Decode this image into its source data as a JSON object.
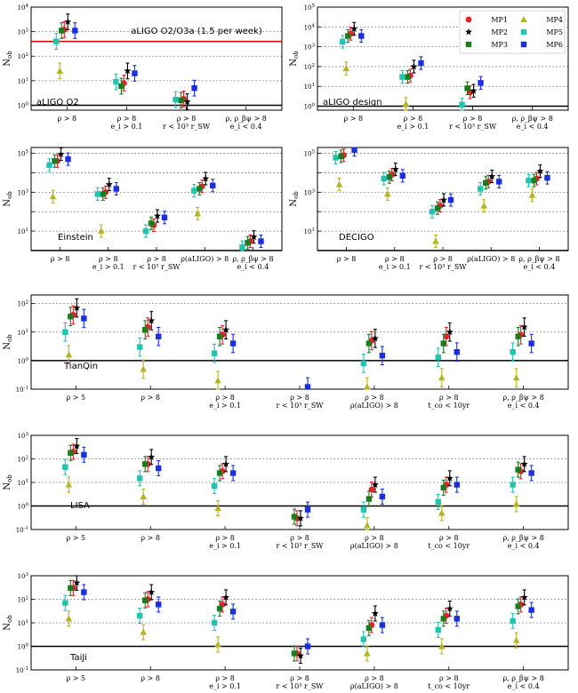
{
  "legend": [
    {
      "name": "MP1",
      "color": "#e8202a",
      "marker": "circle"
    },
    {
      "name": "MP2",
      "color": "#000000",
      "marker": "star"
    },
    {
      "name": "MP3",
      "color": "#1e7a1e",
      "marker": "square"
    },
    {
      "name": "MP4",
      "color": "#b5b51f",
      "marker": "triangle"
    },
    {
      "name": "MP5",
      "color": "#20c4b0",
      "marker": "square"
    },
    {
      "name": "MP6",
      "color": "#1a2fe0",
      "marker": "square"
    }
  ],
  "y_axis_label": "N_ob",
  "chart_data": [
    {
      "type": "scatter",
      "title": "aLIGO O2",
      "annotation": "aLIGO O2/O3a (1.5 per week)",
      "ylim_exp": [
        -0.2,
        4
      ],
      "yticks_exp": [
        0,
        1,
        2,
        3,
        4
      ],
      "reference_lines": [
        {
          "y": 1,
          "color": "#000000"
        },
        {
          "y": 400,
          "color": "#e00000"
        }
      ],
      "categories": [
        [
          "ρ > 8"
        ],
        [
          "ρ > 8",
          "e_i > 0.1"
        ],
        [
          "ρ > 8",
          "r < 10³ r_SW"
        ],
        [
          "ρ, ρ_βψ > 8",
          "e_i < 0.4"
        ]
      ],
      "series": {
        "MP1": [
          1200,
          8,
          1.8,
          null
        ],
        "MP2": [
          2500,
          25,
          1.4,
          null
        ],
        "MP3": [
          1100,
          6,
          1.6,
          null
        ],
        "MP4": [
          25,
          null,
          null,
          null
        ],
        "MP5": [
          400,
          9,
          1.7,
          null
        ],
        "MP6": [
          1100,
          20,
          5,
          null
        ]
      }
    },
    {
      "type": "scatter",
      "title": "aLIGO design",
      "ylim_exp": [
        -0.2,
        5
      ],
      "yticks_exp": [
        0,
        1,
        2,
        3,
        4,
        5
      ],
      "reference_lines": [
        {
          "y": 1,
          "color": "#000000"
        }
      ],
      "categories": [
        [
          "ρ > 8"
        ],
        [
          "ρ > 8",
          "e_i > 0.1"
        ],
        [
          "ρ > 8",
          "r < 10³ r_SW"
        ],
        [
          "ρ, ρ_βψ > 8",
          "e_i < 0.4"
        ]
      ],
      "series": {
        "MP1": [
          4500,
          35,
          5,
          null
        ],
        "MP2": [
          8000,
          100,
          6,
          null
        ],
        "MP3": [
          3500,
          30,
          8,
          null
        ],
        "MP4": [
          80,
          1.3,
          null,
          null
        ],
        "MP5": [
          1800,
          30,
          1.2,
          null
        ],
        "MP6": [
          3500,
          150,
          15,
          null
        ]
      }
    },
    {
      "type": "scatter",
      "title": "Einstein",
      "ylim_exp": [
        0,
        5.3
      ],
      "yticks_exp": [
        1,
        3,
        5
      ],
      "reference_lines": [
        {
          "y": 1,
          "color": "#000000"
        }
      ],
      "categories": [
        [
          "ρ > 8"
        ],
        [
          "ρ > 8",
          "e_i > 0.1"
        ],
        [
          "ρ > 8",
          "r < 10³ r_SW"
        ],
        [
          "ρ(aLIGO) > 8"
        ],
        [
          "ρ, ρ_βψ > 8",
          "e_i < 0.4"
        ]
      ],
      "series": {
        "MP1": [
          40000,
          1000,
          20,
          2000,
          3
        ],
        "MP2": [
          90000,
          2500,
          60,
          5000,
          5
        ],
        "MP3": [
          40000,
          800,
          25,
          1500,
          2.5
        ],
        "MP4": [
          600,
          10,
          null,
          80,
          null
        ],
        "MP5": [
          25000,
          800,
          10,
          1200,
          1.5
        ],
        "MP6": [
          50000,
          1500,
          50,
          2200,
          3
        ]
      }
    },
    {
      "type": "scatter",
      "title": "DECIGO",
      "ylim_exp": [
        0,
        5.3
      ],
      "yticks_exp": [
        1,
        3,
        5
      ],
      "reference_lines": [
        {
          "y": 1,
          "color": "#000000"
        }
      ],
      "categories": [
        [
          "ρ > 8"
        ],
        [
          "ρ > 8",
          "e_i > 0.1"
        ],
        [
          "ρ > 8",
          "r < 10³ r_SW"
        ],
        [
          "ρ(aLIGO) > 8"
        ],
        [
          "ρ, ρ_βψ > 8",
          "e_i < 0.4"
        ]
      ],
      "series": {
        "MP1": [
          80000,
          8000,
          200,
          3500,
          5000
        ],
        "MP2": [
          200000,
          15000,
          400,
          6500,
          12000
        ],
        "MP3": [
          70000,
          6000,
          150,
          3000,
          4000
        ],
        "MP4": [
          2500,
          800,
          3,
          200,
          700
        ],
        "MP5": [
          60000,
          5000,
          100,
          1500,
          4000
        ],
        "MP6": [
          150000,
          7000,
          400,
          3500,
          5500
        ]
      }
    },
    {
      "type": "scatter",
      "title": "TianQin",
      "ylim_exp": [
        -1,
        2.3
      ],
      "yticks_exp": [
        -1,
        0,
        1,
        2
      ],
      "reference_lines": [
        {
          "y": 1,
          "color": "#000000"
        }
      ],
      "categories": [
        [
          "ρ > 5"
        ],
        [
          "ρ > 8"
        ],
        [
          "ρ > 8",
          "e_i > 0.1"
        ],
        [
          "ρ > 8",
          "r < 10³ r_SW"
        ],
        [
          "ρ > 8",
          "ρ(aLIGO) > 8"
        ],
        [
          "ρ > 8",
          "t_co < 10yr"
        ],
        [
          "ρ, ρ_βψ > 8",
          "e_i < 0.4"
        ]
      ],
      "series": {
        "MP1": [
          40,
          15,
          8,
          null,
          5,
          7,
          8
        ],
        "MP2": [
          70,
          25,
          12,
          0.09,
          6,
          10,
          15
        ],
        "MP3": [
          35,
          12,
          7,
          null,
          4,
          4,
          7
        ],
        "MP4": [
          1.6,
          0.5,
          0.2,
          null,
          0.12,
          0.25,
          0.25
        ],
        "MP5": [
          10,
          3,
          1.8,
          null,
          0.8,
          1.3,
          2
        ],
        "MP6": [
          30,
          7,
          4,
          0.12,
          1.5,
          2,
          4
        ]
      }
    },
    {
      "type": "scatter",
      "title": "LISA",
      "ylim_exp": [
        -1,
        3
      ],
      "yticks_exp": [
        -1,
        0,
        1,
        2,
        3
      ],
      "reference_lines": [
        {
          "y": 1,
          "color": "#000000"
        }
      ],
      "categories": [
        [
          "ρ > 5"
        ],
        [
          "ρ > 8"
        ],
        [
          "ρ > 8",
          "e_i > 0.1"
        ],
        [
          "ρ > 8",
          "r < 10³ r_SW"
        ],
        [
          "ρ > 8",
          "ρ(aLIGO) > 8"
        ],
        [
          "ρ > 8",
          "t_co < 10yr"
        ],
        [
          "ρ, ρ_βψ > 8",
          "e_i < 0.4"
        ]
      ],
      "series": {
        "MP1": [
          200,
          60,
          30,
          0.3,
          5,
          8,
          30
        ],
        "MP2": [
          350,
          120,
          60,
          0.3,
          8,
          15,
          60
        ],
        "MP3": [
          180,
          60,
          25,
          0.35,
          2,
          6,
          35
        ],
        "MP4": [
          8,
          2.5,
          0.8,
          null,
          0.15,
          0.5,
          1.2
        ],
        "MP5": [
          45,
          15,
          7,
          null,
          0.7,
          1.5,
          8
        ],
        "MP6": [
          150,
          40,
          25,
          0.7,
          2.5,
          8,
          25
        ]
      }
    },
    {
      "type": "scatter",
      "title": "TaiJi",
      "ylim_exp": [
        -1,
        3
      ],
      "yticks_exp": [
        -1,
        0,
        1,
        2,
        3
      ],
      "reference_lines": [
        {
          "y": 1,
          "color": "#000000"
        }
      ],
      "categories": [
        [
          "ρ > 5"
        ],
        [
          "ρ > 8"
        ],
        [
          "ρ > 8",
          "e_i > 0.1"
        ],
        [
          "ρ > 8",
          "r < 10³ r_SW"
        ],
        [
          "ρ > 8",
          "ρ(aLIGO) > 8"
        ],
        [
          "ρ > 8",
          "t_co < 10yr"
        ],
        [
          "ρ, ρ_βψ > 8",
          "e_i < 0.4"
        ]
      ],
      "series": {
        "MP1": [
          300,
          100,
          60,
          0.5,
          8,
          20,
          60
        ],
        "MP2": [
          500,
          200,
          120,
          0.4,
          25,
          40,
          120
        ],
        "MP3": [
          300,
          90,
          40,
          0.5,
          6,
          15,
          50
        ],
        "MP4": [
          15,
          4,
          1.2,
          null,
          0.5,
          1,
          1.8
        ],
        "MP5": [
          70,
          20,
          10,
          null,
          2,
          5,
          12
        ],
        "MP6": [
          200,
          60,
          30,
          1,
          8,
          15,
          35
        ]
      }
    }
  ]
}
